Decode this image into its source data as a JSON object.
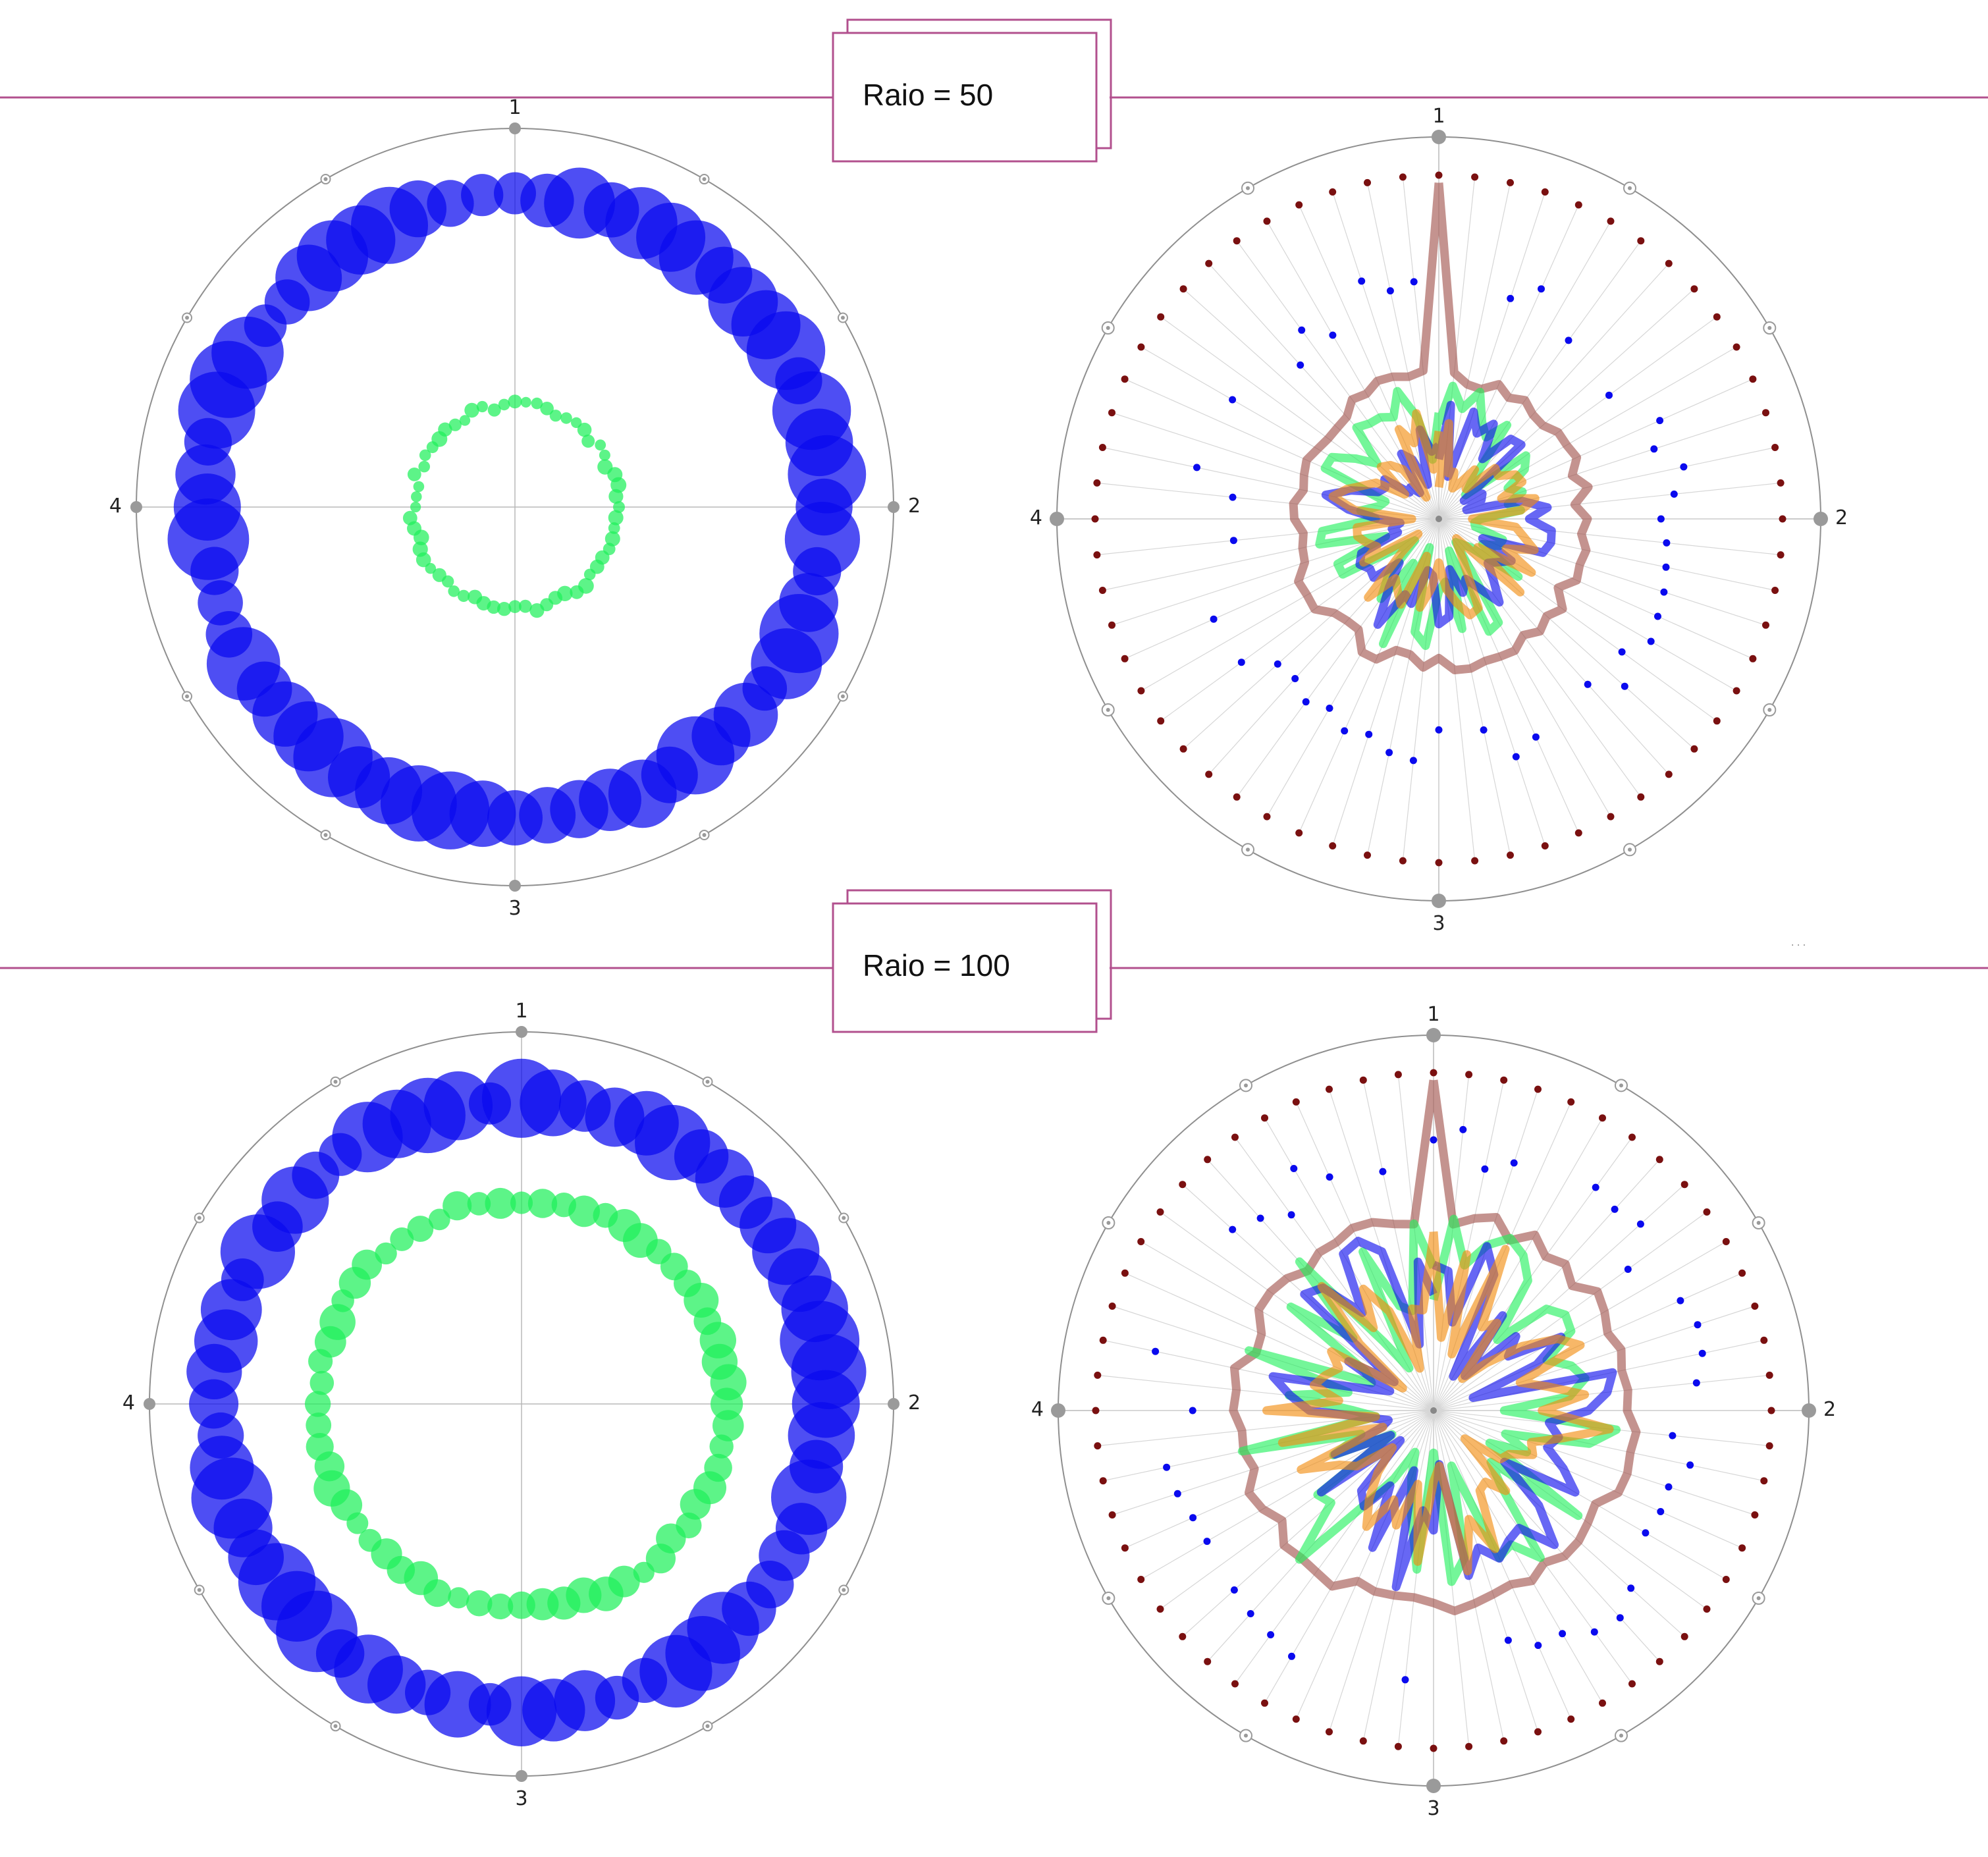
{
  "sections": [
    {
      "label": "Raio = 50"
    },
    {
      "label": "Raio = 100"
    }
  ],
  "axis_labels": [
    "1",
    "2",
    "3",
    "4"
  ],
  "colors": {
    "header_line": "#b2508e",
    "blue": "#0a0aee",
    "green": "#1ef05a",
    "dark_red": "#7a1010",
    "brown": "#a0504a",
    "orange": "#f28a0c",
    "axis": "#8f8f8f",
    "ring_marker": "#9a9a9a"
  },
  "chart_data": [
    {
      "type": "scatter",
      "subtype": "polar-bubble",
      "section": "Raio = 50",
      "axis_labels": [
        "1",
        "2",
        "3",
        "4"
      ],
      "series": [
        {
          "color": "blue",
          "radius_fraction": 0.82,
          "point_count": 60
        },
        {
          "color": "green",
          "radius_fraction": 0.27,
          "point_count": 60
        }
      ]
    },
    {
      "type": "line",
      "subtype": "polar-radar",
      "section": "Raio = 50",
      "axis_labels": [
        "1",
        "2",
        "3",
        "4"
      ],
      "series": [
        {
          "color": "dark_red",
          "style": "dots",
          "radius_fraction": 0.9
        },
        {
          "color": "blue",
          "style": "dots",
          "radius_fraction": 0.6
        },
        {
          "color": "brown",
          "style": "line",
          "radius_fraction": 0.38
        },
        {
          "color": "green",
          "style": "line",
          "radius_fraction": 0.3
        },
        {
          "color": "blue",
          "style": "line",
          "radius_fraction": 0.28
        },
        {
          "color": "orange",
          "style": "line",
          "radius_fraction": 0.24
        }
      ]
    },
    {
      "type": "scatter",
      "subtype": "polar-bubble",
      "section": "Raio = 100",
      "axis_labels": [
        "1",
        "2",
        "3",
        "4"
      ],
      "series": [
        {
          "color": "blue",
          "radius_fraction": 0.82,
          "point_count": 60
        },
        {
          "color": "green",
          "radius_fraction": 0.55,
          "point_count": 60
        }
      ]
    },
    {
      "type": "line",
      "subtype": "polar-radar",
      "section": "Raio = 100",
      "axis_labels": [
        "1",
        "2",
        "3",
        "4"
      ],
      "series": [
        {
          "color": "dark_red",
          "style": "dots",
          "radius_fraction": 0.9
        },
        {
          "color": "blue",
          "style": "dots",
          "radius_fraction": 0.7
        },
        {
          "color": "brown",
          "style": "line",
          "radius_fraction": 0.52
        },
        {
          "color": "green",
          "style": "line",
          "radius_fraction": 0.45
        },
        {
          "color": "blue",
          "style": "line",
          "radius_fraction": 0.42
        },
        {
          "color": "orange",
          "style": "line",
          "radius_fraction": 0.4
        }
      ]
    }
  ]
}
